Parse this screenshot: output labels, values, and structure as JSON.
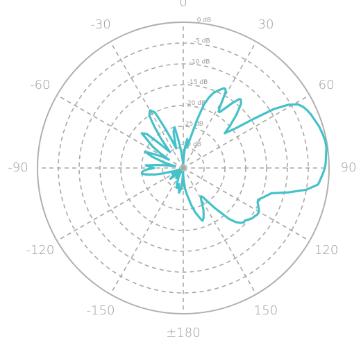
{
  "chart_data": {
    "type": "line",
    "subtype": "polar",
    "title": "",
    "theta_direction": "clockwise",
    "theta_zero_location": "top",
    "theta_ticks": [
      {
        "angle": 0,
        "label": "0"
      },
      {
        "angle": 30,
        "label": "30"
      },
      {
        "angle": 60,
        "label": "60"
      },
      {
        "angle": 90,
        "label": "90"
      },
      {
        "angle": 120,
        "label": "120"
      },
      {
        "angle": 150,
        "label": "150"
      },
      {
        "angle": 180,
        "label": "±180"
      },
      {
        "angle": -150,
        "label": "-150"
      },
      {
        "angle": -120,
        "label": "-120"
      },
      {
        "angle": -90,
        "label": "-90"
      },
      {
        "angle": -60,
        "label": "-60"
      },
      {
        "angle": -30,
        "label": "-30"
      }
    ],
    "r_ticks": [
      {
        "value": 0,
        "label": "0 dB"
      },
      {
        "value": -5,
        "label": "-5 dB"
      },
      {
        "value": -10,
        "label": "-10 dB"
      },
      {
        "value": -15,
        "label": "-15 dB"
      },
      {
        "value": -20,
        "label": "-20 dB"
      },
      {
        "value": -25,
        "label": "-25 dB"
      },
      {
        "value": -30,
        "label": "-30 dB"
      }
    ],
    "r_range": [
      -35,
      0
    ],
    "r_unit": "dB",
    "grid": true,
    "colors": {
      "series": "#45c1c9",
      "grid": "#a8a8a8",
      "outer_ring": "#b0b0b0",
      "text": "#9a9a9a"
    },
    "series": [
      {
        "theta": [
          0,
          3,
          5,
          8,
          10,
          13,
          16,
          18,
          20,
          22,
          25,
          27,
          28,
          29,
          30,
          31,
          32,
          33,
          35,
          37,
          39,
          40,
          42,
          45,
          48,
          50,
          53,
          55,
          57,
          59,
          61,
          63,
          65,
          67,
          70,
          73,
          76,
          79,
          82,
          85,
          88,
          90,
          92,
          95,
          97,
          100,
          103,
          106,
          110,
          113,
          115,
          118,
          120,
          122,
          124,
          126,
          128,
          130,
          132,
          134,
          136,
          138,
          140,
          142,
          144,
          146,
          148,
          150,
          152,
          154,
          156,
          158,
          160,
          162,
          165,
          168,
          170,
          172,
          175,
          178,
          180,
          -178,
          -176,
          -174,
          -172,
          -170,
          -168,
          -165,
          -162,
          -160,
          -158,
          -155,
          -152,
          -150,
          -147,
          -145,
          -142,
          -140,
          -137,
          -135,
          -132,
          -130,
          -127,
          -125,
          -122,
          -120,
          -117,
          -115,
          -112,
          -110,
          -107,
          -105,
          -103,
          -100,
          -98,
          -96,
          -94,
          -92,
          -90,
          -88,
          -86,
          -84,
          -82,
          -80,
          -77,
          -75,
          -72,
          -70,
          -67,
          -65,
          -62,
          -60,
          -57,
          -55,
          -52,
          -50,
          -47,
          -45,
          -43,
          -40,
          -37,
          -35,
          -33,
          -30,
          -27,
          -25,
          -22,
          -20,
          -17,
          -15,
          -12,
          -10,
          -7,
          -5,
          -2,
          0
        ],
        "r": [
          -34,
          -32,
          -30,
          -28,
          -30,
          -28,
          -23,
          -19,
          -17,
          -15.5,
          -14.3,
          -13.5,
          -13.5,
          -14,
          -16,
          -18,
          -19,
          -19,
          -17.5,
          -15.5,
          -13.7,
          -13.5,
          -14.3,
          -17,
          -20,
          -22,
          -19,
          -14.5,
          -9,
          -5.5,
          -3.5,
          -2.7,
          -2.2,
          -1.8,
          -1.4,
          -0.9,
          -0.6,
          -0.3,
          -0.3,
          -0.6,
          -0.8,
          -1.0,
          -1.4,
          -2.0,
          -2.4,
          -5,
          -9,
          -13,
          -14.5,
          -15.5,
          -15.3,
          -14.5,
          -14,
          -14,
          -14.3,
          -14.5,
          -14.9,
          -15.5,
          -15.5,
          -16,
          -17,
          -18.5,
          -21,
          -23,
          -25,
          -26.5,
          -27,
          -26.5,
          -25.5,
          -24,
          -23,
          -22,
          -21.5,
          -22.5,
          -24,
          -26,
          -27.5,
          -28.5,
          -30,
          -32,
          -33,
          -34,
          -32,
          -30,
          -29.5,
          -29,
          -30,
          -31,
          -30,
          -30.5,
          -31,
          -32,
          -33,
          -34,
          -33,
          -32,
          -33,
          -34,
          -34,
          -33,
          -32,
          -31,
          -32,
          -33,
          -34,
          -33,
          -32,
          -33,
          -34,
          -33,
          -32,
          -30,
          -28,
          -26,
          -25,
          -25,
          -25.5,
          -26.5,
          -28,
          -27,
          -26,
          -28,
          -30,
          -32,
          -33,
          -31,
          -29,
          -27,
          -25,
          -27,
          -29,
          -31,
          -28,
          -26,
          -24,
          -22,
          -23,
          -26,
          -28,
          -30,
          -26,
          -23,
          -20,
          -19,
          -20,
          -24,
          -28,
          -30,
          -28,
          -26,
          -25,
          -28,
          -31,
          -33,
          -34,
          -34
        ]
      }
    ]
  }
}
